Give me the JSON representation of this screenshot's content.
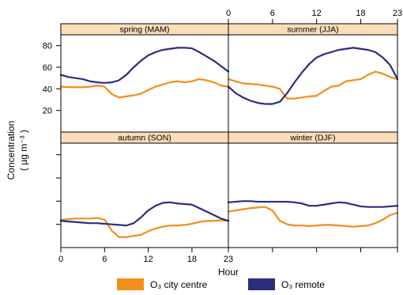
{
  "chart_data": {
    "type": "line",
    "xlabel": "Hour",
    "ylabel": "Concentration",
    "ylabel_unit": "( µg m⁻³ )",
    "xlim": [
      0,
      23
    ],
    "ylim": [
      0,
      90
    ],
    "x_ticks": [
      0,
      6,
      12,
      18,
      23
    ],
    "y_ticks": [
      20,
      40,
      60,
      80
    ],
    "grid": false,
    "legend_position": "bottom",
    "panels": [
      {
        "title": "spring (MAM)",
        "series": [
          {
            "name": "O₃ city centre",
            "color": "#F28E1C",
            "values": [
              42,
              41.5,
              41.5,
              41.5,
              42,
              43,
              42,
              35,
              32,
              33,
              34,
              35.5,
              39,
              42,
              44,
              46,
              47,
              46,
              47,
              49,
              48,
              46,
              43,
              42
            ]
          },
          {
            "name": "O₃ remote",
            "color": "#2B2D7F",
            "values": [
              53,
              51,
              50,
              49,
              47,
              46,
              45.5,
              46,
              48,
              53,
              60,
              66,
              71,
              74,
              76,
              77,
              78,
              78,
              77.5,
              74,
              70,
              66,
              61,
              56
            ]
          }
        ]
      },
      {
        "title": "summer (JJA)",
        "series": [
          {
            "name": "O₃ city centre",
            "color": "#F28E1C",
            "values": [
              49,
              47,
              45,
              44.5,
              44,
              43,
              42,
              40,
              31,
              31,
              32,
              33,
              33.5,
              38,
              42,
              43,
              47,
              48,
              49,
              53,
              56,
              54,
              51,
              49
            ]
          },
          {
            "name": "O₃ remote",
            "color": "#2B2D7F",
            "values": [
              42,
              36,
              32,
              29,
              27,
              26,
              26,
              28,
              36,
              46,
              55,
              63,
              69,
              72,
              74,
              76,
              77,
              78,
              77,
              76,
              74,
              69,
              62,
              49
            ]
          }
        ]
      },
      {
        "title": "autumn (SON)",
        "series": [
          {
            "name": "O₃ city centre",
            "color": "#F28E1C",
            "values": [
              24,
              24.5,
              25,
              25,
              25,
              25.5,
              24,
              14.5,
              9,
              9,
              10,
              11,
              14,
              16.5,
              18,
              19,
              19,
              19.5,
              20.5,
              22,
              23,
              23,
              23.5,
              23
            ]
          },
          {
            "name": "O₃ remote",
            "color": "#2B2D7F",
            "values": [
              23,
              22.5,
              22,
              21.5,
              21,
              21,
              20.5,
              20,
              19.5,
              19,
              21,
              26,
              32,
              36,
              38.5,
              39,
              38,
              37.5,
              37,
              34,
              31,
              28,
              25,
              23
            ]
          }
        ]
      },
      {
        "title": "winter (DJF)",
        "series": [
          {
            "name": "O₃ city centre",
            "color": "#F28E1C",
            "values": [
              31,
              32,
              33,
              34,
              34.5,
              35,
              32,
              23,
              20,
              19,
              19,
              18.5,
              19,
              19.5,
              19.5,
              19,
              18.5,
              18,
              18.5,
              19,
              21,
              24,
              28,
              30
            ]
          },
          {
            "name": "O₃ remote",
            "color": "#2B2D7F",
            "values": [
              39,
              39.5,
              40,
              40,
              39.5,
              39.5,
              39.5,
              39.5,
              39.5,
              39,
              38,
              36,
              36,
              37,
              38,
              39,
              38.5,
              37,
              35.5,
              35,
              35,
              35,
              35.5,
              36
            ]
          }
        ]
      }
    ]
  }
}
